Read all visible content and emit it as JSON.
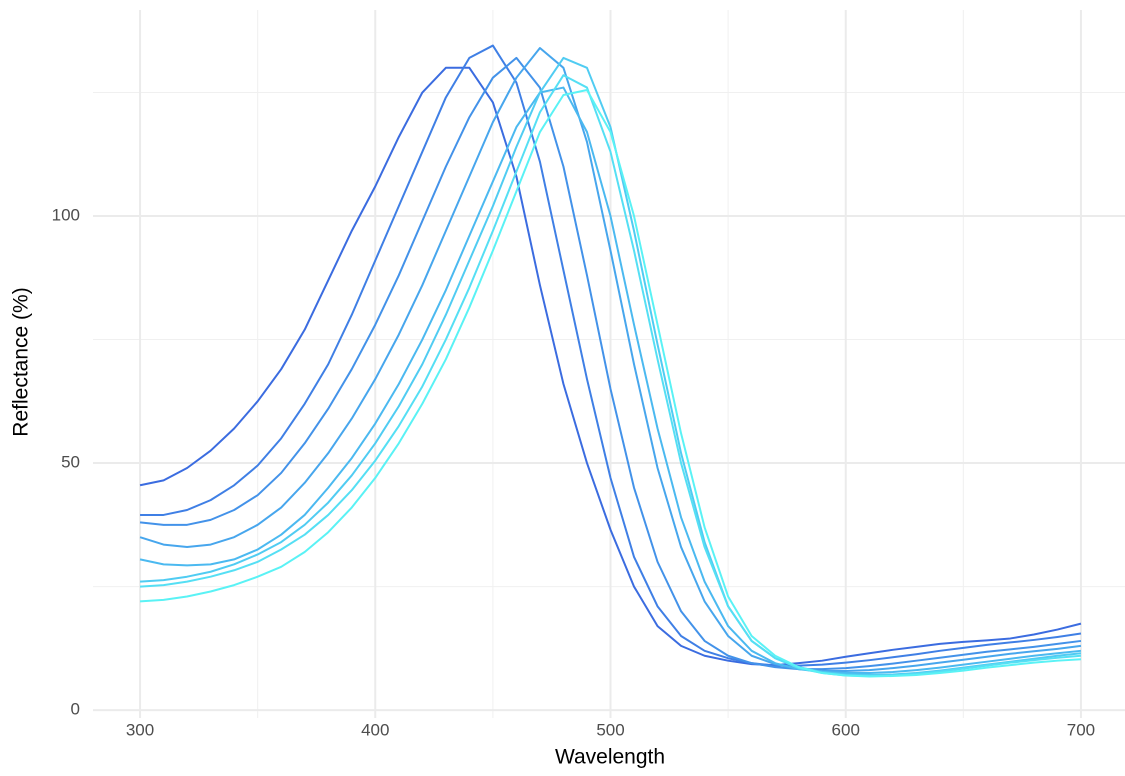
{
  "chart_data": {
    "type": "line",
    "x_label": "Wavelength",
    "y_label": "Reflectance (%)",
    "x": [
      300,
      310,
      320,
      330,
      340,
      350,
      360,
      370,
      380,
      390,
      400,
      410,
      420,
      430,
      440,
      450,
      460,
      470,
      480,
      490,
      500,
      510,
      520,
      530,
      540,
      550,
      560,
      570,
      580,
      590,
      600,
      610,
      620,
      630,
      640,
      650,
      660,
      670,
      680,
      690,
      700
    ],
    "series": [
      {
        "color": "#3b6ce0",
        "values": [
          45.5,
          46.5,
          49,
          52.5,
          57,
          62.5,
          69,
          77,
          87,
          97,
          106,
          116,
          125,
          130,
          130,
          123,
          108,
          86,
          66,
          50,
          36.5,
          25,
          17,
          13,
          11,
          10,
          9.3,
          9.1,
          9.5,
          10,
          10.8,
          11.5,
          12.2,
          12.8,
          13.4,
          13.8,
          14.1,
          14.5,
          15.3,
          16.3,
          17.5
        ]
      },
      {
        "color": "#3f7fe5",
        "values": [
          39.5,
          39.5,
          40.5,
          42.5,
          45.5,
          49.5,
          55,
          62,
          70,
          80,
          91,
          102,
          113,
          124,
          132,
          134.5,
          127,
          111,
          89,
          67,
          47,
          31,
          21,
          15,
          12,
          10.5,
          9.5,
          9,
          9,
          9.2,
          9.6,
          10.1,
          10.7,
          11.3,
          12,
          12.6,
          13.2,
          13.7,
          14.2,
          14.8,
          15.5
        ]
      },
      {
        "color": "#4392e9",
        "values": [
          38,
          37.5,
          37.5,
          38.5,
          40.5,
          43.5,
          48,
          54,
          61,
          69,
          78,
          88,
          99,
          110,
          120,
          128,
          132,
          126,
          110,
          88,
          65,
          45,
          30,
          20,
          14,
          11,
          9.5,
          8.7,
          8.3,
          8.3,
          8.5,
          8.9,
          9.4,
          10,
          10.6,
          11.2,
          11.8,
          12.3,
          12.8,
          13.4,
          14
        ]
      },
      {
        "color": "#47a6ed",
        "values": [
          35,
          33.5,
          33,
          33.5,
          35,
          37.5,
          41,
          46,
          52,
          59,
          67,
          76,
          86,
          97,
          108,
          119,
          128,
          134,
          130,
          115,
          93,
          70,
          49,
          33,
          22,
          15,
          11,
          9.3,
          8.3,
          7.9,
          7.9,
          8.1,
          8.5,
          9,
          9.6,
          10.2,
          10.8,
          11.4,
          11.9,
          12.4,
          13
        ]
      },
      {
        "color": "#4bb9f0",
        "values": [
          30.5,
          29.5,
          29.3,
          29.5,
          30.5,
          32.5,
          35.5,
          39.5,
          45,
          51,
          58,
          66,
          75,
          85,
          96,
          107,
          118,
          125,
          126,
          117,
          100,
          78,
          57,
          39,
          26,
          17,
          12,
          9.5,
          8.3,
          7.7,
          7.5,
          7.5,
          7.7,
          8.1,
          8.6,
          9.2,
          9.8,
          10.4,
          11,
          11.5,
          12
        ]
      },
      {
        "color": "#50ccf2",
        "values": [
          26,
          26.3,
          27,
          28,
          29.5,
          31.5,
          34,
          37.5,
          42,
          47.5,
          54,
          61.5,
          70,
          80,
          91,
          102,
          114,
          125,
          132,
          130,
          118,
          97,
          74,
          52,
          34,
          21,
          14,
          10.5,
          8.7,
          7.7,
          7.2,
          7.1,
          7.2,
          7.5,
          8,
          8.6,
          9.2,
          9.8,
          10.4,
          11,
          11.5
        ]
      },
      {
        "color": "#55dff4",
        "values": [
          25,
          25.3,
          26,
          27,
          28.3,
          30,
          32.5,
          35.5,
          39.5,
          44.5,
          50.5,
          57.5,
          65.5,
          75,
          85.5,
          97,
          109,
          121,
          128.5,
          126,
          113,
          93,
          71,
          50,
          33,
          21,
          14,
          10.5,
          8.5,
          7.5,
          7,
          6.9,
          7,
          7.3,
          7.8,
          8.4,
          9,
          9.6,
          10.1,
          10.6,
          11
        ]
      },
      {
        "color": "#5af2f5",
        "values": [
          22,
          22.3,
          23,
          24,
          25.3,
          27,
          29,
          32,
          36,
          41,
          47,
          54,
          62,
          71,
          81.5,
          93,
          105,
          117,
          124.5,
          125.5,
          117,
          100,
          78,
          56,
          37,
          23,
          15,
          11,
          8.7,
          7.5,
          7,
          6.8,
          6.9,
          7.1,
          7.5,
          8,
          8.6,
          9.1,
          9.6,
          10,
          10.3
        ]
      }
    ],
    "xlim": [
      280,
      720
    ],
    "ylim": [
      -1.6,
      141.7
    ],
    "xticks": [
      300,
      400,
      500,
      600,
      700
    ],
    "yticks": [
      0,
      50,
      100
    ],
    "xminor": [
      350,
      450,
      550,
      650
    ],
    "yminor": [
      25,
      75,
      125
    ],
    "grid": true
  }
}
